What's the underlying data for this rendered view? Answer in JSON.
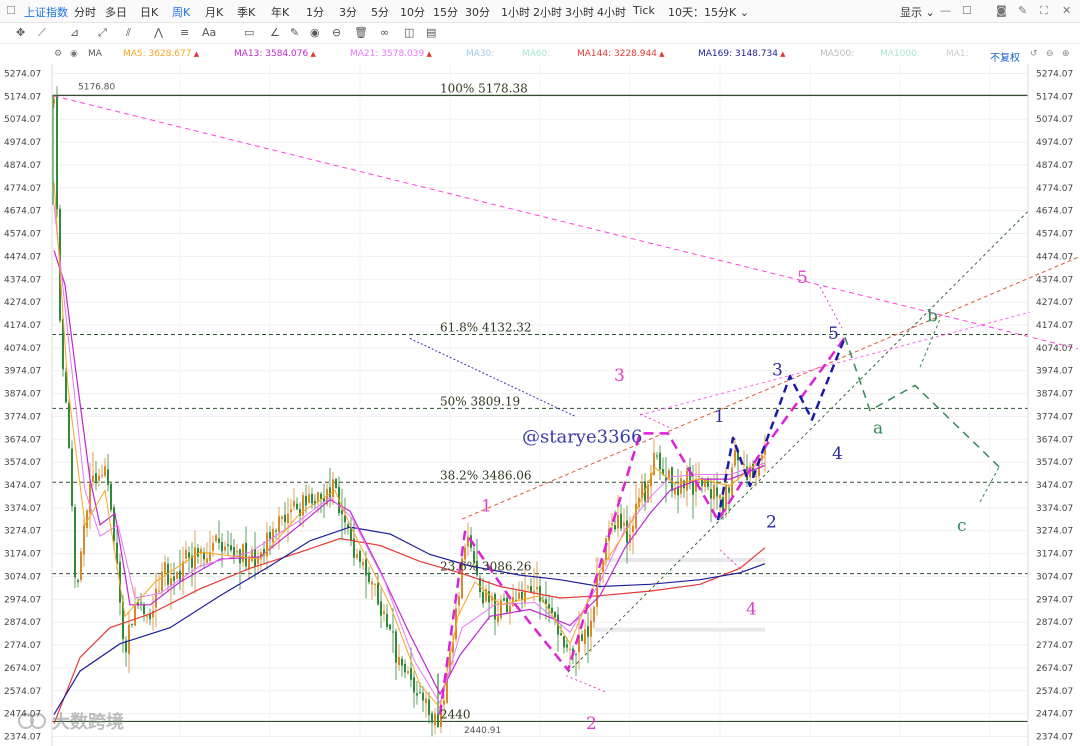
{
  "toolbar": {
    "index_name": "上证指数",
    "periods": [
      "分时",
      "多日",
      "日K",
      "周K",
      "月K",
      "季K",
      "年K",
      "1分",
      "3分",
      "5分",
      "10分",
      "15分",
      "30分",
      "1小时",
      "2小时",
      "3小时",
      "4小时",
      "Tick"
    ],
    "active_period": "周K",
    "multi_period": "10天：15分K",
    "display_label": "显示"
  },
  "legend": {
    "ma_label": "MA",
    "items": [
      {
        "text": "MA5: 3628.677",
        "color": "#f5a623",
        "arrow": "▲"
      },
      {
        "text": "MA13: 3584.076",
        "color": "#c026d3",
        "arrow": "▲"
      },
      {
        "text": "MA21: 3578.039",
        "color": "#e879f9",
        "arrow": "▲"
      },
      {
        "text": "MA30:",
        "color": "#a5c8e8",
        "arrow": ""
      },
      {
        "text": "MA60:",
        "color": "#a8e6cf",
        "arrow": ""
      },
      {
        "text": "MA144: 3228.944",
        "color": "#e53935",
        "arrow": "▲"
      },
      {
        "text": "MA169: 3148.734",
        "color": "#1e1e9e",
        "arrow": "▲"
      },
      {
        "text": "MA500:",
        "color": "#bbbbbb",
        "arrow": ""
      },
      {
        "text": "MA1000:",
        "color": "#a8e6cf",
        "arrow": ""
      },
      {
        "text": "MA1:",
        "color": "#cccccc",
        "arrow": ""
      }
    ],
    "adjust_label": "不复权"
  },
  "chart_data": {
    "type": "candlestick",
    "y_ticks": [
      "5274.07",
      "5174.07",
      "5074.07",
      "4974.07",
      "4874.07",
      "4774.07",
      "4674.07",
      "4574.07",
      "4474.07",
      "4374.07",
      "4274.07",
      "4174.07",
      "4074.07",
      "3974.07",
      "3874.07",
      "3774.07",
      "3674.07",
      "3574.07",
      "3474.07",
      "3374.07",
      "3274.07",
      "3174.07",
      "3074.07",
      "2974.07",
      "2874.07",
      "2774.07",
      "2674.07",
      "2574.07",
      "2474.07",
      "2374.07"
    ],
    "ylim": [
      2374.07,
      5274.07
    ],
    "high_label": "5176.80",
    "low_label": "2440.91",
    "fib_levels": [
      {
        "label": "100% 5178.38",
        "value": 5178.38,
        "style": "solid"
      },
      {
        "label": "61.8% 4132.32",
        "value": 4132.32,
        "style": "dashed"
      },
      {
        "label": "50% 3809.19",
        "value": 3809.19,
        "style": "dashed"
      },
      {
        "label": "38.2% 3486.06",
        "value": 3486.06,
        "style": "dashed"
      },
      {
        "label": "23.6% 3086.26",
        "value": 3086.26,
        "style": "dashed"
      },
      {
        "label": "2440",
        "value": 2440,
        "style": "solid"
      }
    ],
    "watermark_handle": "@starye3366",
    "watermark_logo": "大数跨境",
    "wave_labels": [
      {
        "text": "1",
        "color": "#e040c8",
        "price": 3385
      },
      {
        "text": "2",
        "color": "#e040c8",
        "price": 2434
      },
      {
        "text": "3",
        "color": "#e040c8",
        "price": 3955
      },
      {
        "text": "4",
        "color": "#e040c8",
        "price": 2935
      },
      {
        "text": "5",
        "color": "#e040c8",
        "price": 4385
      },
      {
        "text": "1",
        "color": "#2b2b9e",
        "price": 3775
      },
      {
        "text": "2",
        "color": "#2b2b9e",
        "price": 3314
      },
      {
        "text": "3",
        "color": "#2b2b9e",
        "price": 3980
      },
      {
        "text": "4",
        "color": "#2b2b9e",
        "price": 3614
      },
      {
        "text": "5",
        "color": "#2b2b9e",
        "price": 4140
      },
      {
        "text": "a",
        "color": "#2e8b57",
        "price": 3725
      },
      {
        "text": "b",
        "color": "#2e8b57",
        "price": 4215
      },
      {
        "text": "c",
        "color": "#2e8b57",
        "price": 3300
      }
    ]
  }
}
